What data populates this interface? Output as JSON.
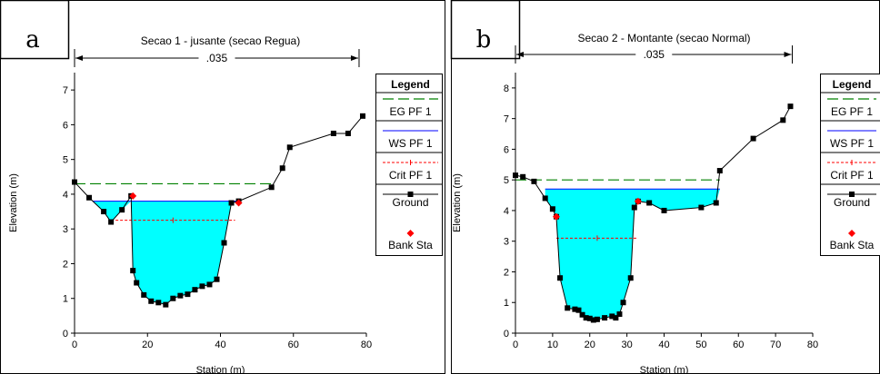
{
  "colors": {
    "water": "#00ffff",
    "eg": "#008000",
    "ws": "#0000ff",
    "crit": "#ff0000",
    "ground": "#000000",
    "bank": "#ff0000"
  },
  "chart_data": [
    {
      "type": "line",
      "panel_label": "a",
      "title": "Secao 1 - jusante (secao Regua)",
      "annotation": ".035",
      "annotation_range": [
        0,
        78
      ],
      "xlabel": "Station (m)",
      "ylabel": "Elevation (m)",
      "xlim": [
        0,
        80
      ],
      "ylim": [
        0,
        7.5
      ],
      "xticks": [
        0,
        20,
        40,
        60,
        80
      ],
      "yticks": [
        0,
        1,
        2,
        3,
        4,
        5,
        6,
        7
      ],
      "grid": false,
      "legend": {
        "title": "Legend",
        "placement": "right",
        "entries": [
          "EG PF 1",
          "WS PF 1",
          "Crit PF 1",
          "Ground",
          "Bank Sta"
        ]
      },
      "series": [
        {
          "name": "EG PF 1",
          "style": "dashed",
          "x": [
            0,
            55
          ],
          "y": [
            4.3,
            4.3
          ]
        },
        {
          "name": "WS PF 1",
          "style": "solid",
          "x": [
            5,
            45
          ],
          "y": [
            3.8,
            3.8
          ]
        },
        {
          "name": "Crit PF 1",
          "style": "dotted",
          "x": [
            10,
            44
          ],
          "y": [
            3.25,
            3.25
          ]
        },
        {
          "name": "Ground",
          "style": "solid-markers",
          "x": [
            0,
            4,
            8,
            10,
            13,
            15.5,
            16,
            17,
            19,
            21,
            23,
            25,
            27,
            29,
            31,
            33,
            35,
            37,
            39,
            41,
            43,
            45,
            54,
            57,
            59,
            71,
            75,
            79
          ],
          "y": [
            4.35,
            3.9,
            3.5,
            3.2,
            3.55,
            3.95,
            1.8,
            1.45,
            1.1,
            0.92,
            0.88,
            0.82,
            1.0,
            1.08,
            1.12,
            1.25,
            1.35,
            1.4,
            1.55,
            2.6,
            3.75,
            3.8,
            4.2,
            4.75,
            5.35,
            5.75,
            5.75,
            6.25
          ]
        },
        {
          "name": "Bank Sta",
          "style": "markers",
          "x": [
            16,
            45
          ],
          "y": [
            3.95,
            3.75
          ]
        }
      ]
    },
    {
      "type": "line",
      "panel_label": "b",
      "title": "Secao 2 - Montante (secao Normal)",
      "annotation": ".035",
      "annotation_range": [
        0,
        74.5
      ],
      "xlabel": "Station (m)",
      "ylabel": "Elevation (m)",
      "xlim": [
        0,
        80
      ],
      "ylim": [
        0,
        8.5
      ],
      "xticks": [
        0,
        10,
        20,
        30,
        40,
        50,
        60,
        70,
        80
      ],
      "yticks": [
        0,
        1,
        2,
        3,
        4,
        5,
        6,
        7,
        8
      ],
      "grid": false,
      "legend": {
        "title": "Legend",
        "placement": "right",
        "entries": [
          "EG PF 1",
          "WS PF 1",
          "Crit PF 1",
          "Ground",
          "Bank Sta"
        ]
      },
      "series": [
        {
          "name": "EG PF 1",
          "style": "dashed",
          "x": [
            0,
            55
          ],
          "y": [
            5.0,
            5.0
          ]
        },
        {
          "name": "WS PF 1",
          "style": "solid",
          "x": [
            8,
            55
          ],
          "y": [
            4.7,
            4.7
          ]
        },
        {
          "name": "Crit PF 1",
          "style": "dotted",
          "x": [
            11,
            33
          ],
          "y": [
            3.1,
            3.1
          ]
        },
        {
          "name": "Ground",
          "style": "solid-markers",
          "x": [
            0,
            2,
            5,
            8,
            10,
            11,
            12,
            14,
            16,
            17,
            18,
            19,
            20,
            21,
            22,
            24,
            26,
            27,
            28,
            29,
            31,
            32,
            33,
            36,
            40,
            50,
            54,
            55,
            64,
            72,
            74
          ],
          "y": [
            5.15,
            5.1,
            4.95,
            4.4,
            4.05,
            3.8,
            1.8,
            0.82,
            0.78,
            0.75,
            0.6,
            0.5,
            0.48,
            0.43,
            0.45,
            0.5,
            0.55,
            0.5,
            0.62,
            1.0,
            1.8,
            4.1,
            4.3,
            4.25,
            4.0,
            4.1,
            4.25,
            5.3,
            6.35,
            6.95,
            7.4
          ]
        },
        {
          "name": "Bank Sta",
          "style": "markers",
          "x": [
            11,
            33
          ],
          "y": [
            3.8,
            4.3
          ]
        }
      ]
    }
  ]
}
